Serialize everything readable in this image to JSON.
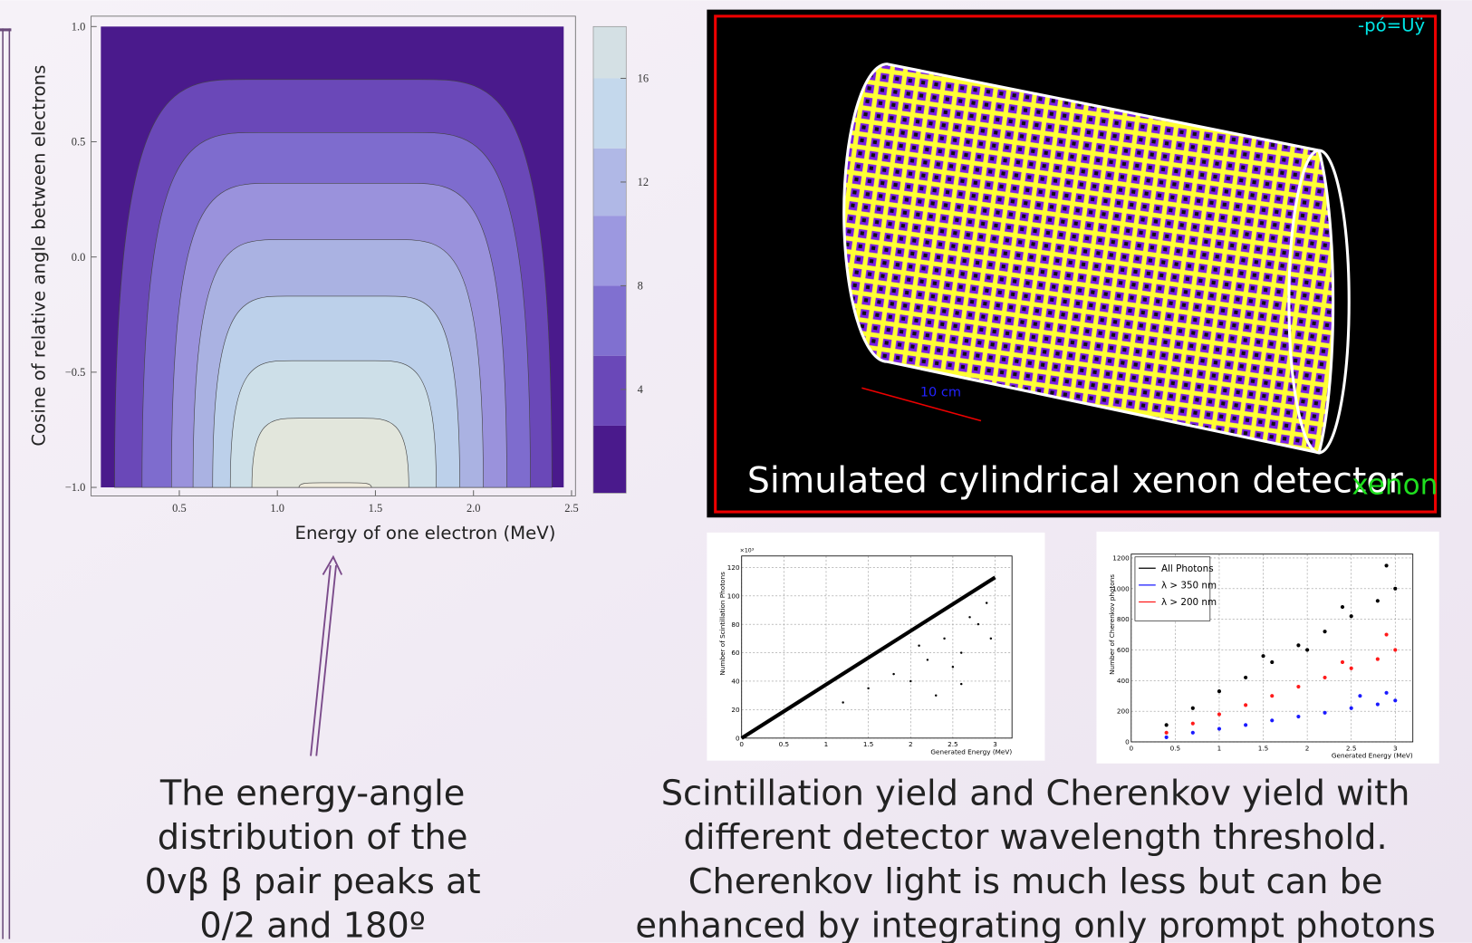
{
  "chart_data": [
    {
      "type": "contour",
      "ylabel": "Cosine of relative angle between electrons",
      "xlabel": "Energy of one electron (MeV)",
      "xlim": [
        0.05,
        2.52
      ],
      "ylim": [
        -1.037,
        1.045
      ],
      "xticks": [
        0.5,
        {
          "value": 1,
          "label": "1.0"
        },
        1.5,
        {
          "value": 2,
          "label": "2.0"
        },
        2.5
      ],
      "yticks": [
        {
          "value": -1,
          "label": "−1.0"
        },
        {
          "value": -0.5,
          "label": "−0.5"
        },
        {
          "value": 0,
          "label": "0.0"
        },
        0.5,
        {
          "value": 1,
          "label": "1.0"
        }
      ],
      "x_range": [
        0.1,
        2.46
      ],
      "y_range": [
        -1,
        1
      ],
      "fill_color": "#4a1a8c",
      "contours": [
        {
          "level": 2.6,
          "x_left": 0.17,
          "x_right": 2.4,
          "y_top": 0.77,
          "color": "#6a48b8"
        },
        {
          "level": 5.3,
          "x_left": 0.31,
          "x_right": 2.29,
          "y_top": 0.54,
          "color": "#7e6cce"
        },
        {
          "level": 8,
          "x_left": 0.46,
          "x_right": 2.17,
          "y_top": 0.32,
          "color": "#9a92dc"
        },
        {
          "level": 10.7,
          "x_left": 0.57,
          "x_right": 2.05,
          "y_top": 0.075,
          "color": "#aab2e2"
        },
        {
          "level": 13.3,
          "x_left": 0.67,
          "x_right": 1.93,
          "y_top": -0.17,
          "color": "#bcd0ea"
        },
        {
          "level": 16,
          "x_left": 0.76,
          "x_right": 1.81,
          "y_top": -0.45,
          "color": "#cddfe8"
        },
        {
          "level": 17,
          "x_left": 0.87,
          "x_right": 1.67,
          "y_top": -0.7,
          "color": "#e2e6dc"
        },
        {
          "level": 17.6,
          "x_left": 1.11,
          "x_right": 1.48,
          "y_top": -0.98,
          "color": "#efebdc"
        }
      ],
      "zlim": [
        0,
        18
      ],
      "zticks": [
        4,
        8,
        12,
        16
      ],
      "levels": [
        0,
        2.6,
        5.3,
        8,
        10.7,
        13.3,
        16,
        18
      ],
      "level_colors": [
        "#4a1a8c",
        "#6a48b8",
        "#8070d0",
        "#9c98e0",
        "#b0b8e6",
        "#c4d8ec",
        "#d4e0e4"
      ]
    },
    {
      "type": "scatter",
      "ylabel": "Number of Scintillation Photons",
      "xlabel": "Generated Energy (MeV)",
      "y_multiplier": "×10³",
      "xlim": [
        0,
        3.2
      ],
      "ylim": [
        0,
        128
      ],
      "xticks": [
        0,
        0.5,
        1,
        1.5,
        2,
        2.5,
        3
      ],
      "yticks": [
        0,
        20,
        40,
        60,
        80,
        100,
        120
      ],
      "grid": true,
      "series": [
        {
          "color": "#000000",
          "line": true,
          "x": [
            0,
            3
          ],
          "values": [
            0,
            113
          ]
        },
        {
          "color": "#000000",
          "x": [
            2.0,
            2.2,
            2.4,
            2.6,
            2.8,
            2.9,
            1.5,
            1.8,
            2.3,
            2.7,
            2.5,
            2.1,
            1.2,
            2.95,
            2.6
          ],
          "values": [
            40,
            55,
            70,
            60,
            80,
            95,
            35,
            45,
            30,
            85,
            50,
            65,
            25,
            70,
            38
          ]
        }
      ]
    },
    {
      "type": "scatter",
      "ylabel": "Number of Cherenkov photons",
      "xlabel": "Generated Energy (MeV)",
      "xlim": [
        0,
        3.2
      ],
      "ylim": [
        0,
        1225
      ],
      "xticks": [
        0,
        0.5,
        1,
        1.5,
        2,
        2.5,
        3
      ],
      "yticks": [
        0,
        200,
        400,
        600,
        800,
        1000,
        1200
      ],
      "grid": true,
      "legend": "upper left",
      "series": [
        {
          "name": "All Photons",
          "color": "#000000",
          "x": [
            0.4,
            0.7,
            1.0,
            1.3,
            1.6,
            1.9,
            2.2,
            2.5,
            2.8,
            3.0,
            1.5,
            2.4,
            2.9,
            2.0
          ],
          "values": [
            110,
            220,
            330,
            420,
            520,
            630,
            720,
            820,
            920,
            1000,
            560,
            880,
            1150,
            600
          ]
        },
        {
          "name": "λ > 350 nm",
          "color": "#1a1aff",
          "x": [
            0.4,
            0.7,
            1.0,
            1.3,
            1.6,
            1.9,
            2.2,
            2.5,
            2.8,
            3.0,
            2.6,
            2.9
          ],
          "values": [
            30,
            60,
            85,
            110,
            140,
            165,
            190,
            220,
            245,
            270,
            300,
            320
          ]
        },
        {
          "name": "λ > 200 nm",
          "color": "#ff1a1a",
          "x": [
            0.4,
            0.7,
            1.0,
            1.3,
            1.6,
            1.9,
            2.2,
            2.5,
            2.8,
            3.0,
            2.4,
            2.9
          ],
          "values": [
            60,
            120,
            180,
            240,
            300,
            360,
            420,
            480,
            540,
            600,
            520,
            700
          ]
        }
      ]
    }
  ],
  "detector": {
    "corner_label": "-pó=Uÿ",
    "scale_label": "10 cm",
    "caption": "Simulated cylindrical xenon detector",
    "overlay_label": "xenon"
  },
  "captions": {
    "left": [
      "The energy-angle",
      "distribution of the",
      "0vβ β pair peaks at",
      "0/2 and 180º"
    ],
    "right": [
      "Scintillation yield and Cherenkov yield with",
      "different detector wavelength threshold.",
      "Cherenkov light is much less but can be",
      "enhanced by integrating only prompt photons"
    ]
  }
}
